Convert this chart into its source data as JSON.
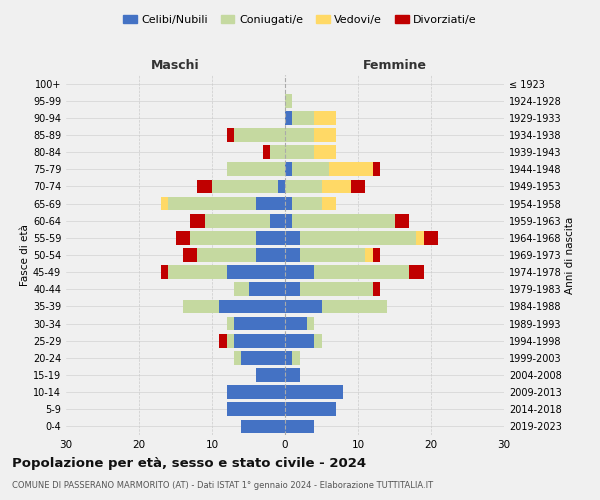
{
  "age_groups": [
    "0-4",
    "5-9",
    "10-14",
    "15-19",
    "20-24",
    "25-29",
    "30-34",
    "35-39",
    "40-44",
    "45-49",
    "50-54",
    "55-59",
    "60-64",
    "65-69",
    "70-74",
    "75-79",
    "80-84",
    "85-89",
    "90-94",
    "95-99",
    "100+"
  ],
  "birth_years": [
    "2019-2023",
    "2014-2018",
    "2009-2013",
    "2004-2008",
    "1999-2003",
    "1994-1998",
    "1989-1993",
    "1984-1988",
    "1979-1983",
    "1974-1978",
    "1969-1973",
    "1964-1968",
    "1959-1963",
    "1954-1958",
    "1949-1953",
    "1944-1948",
    "1939-1943",
    "1934-1938",
    "1929-1933",
    "1924-1928",
    "≤ 1923"
  ],
  "males": {
    "celibi": [
      6,
      8,
      8,
      4,
      6,
      7,
      7,
      9,
      5,
      8,
      4,
      4,
      2,
      4,
      1,
      0,
      0,
      0,
      0,
      0,
      0
    ],
    "coniugati": [
      0,
      0,
      0,
      0,
      1,
      1,
      1,
      5,
      2,
      8,
      8,
      9,
      9,
      12,
      9,
      8,
      2,
      7,
      0,
      0,
      0
    ],
    "vedovi": [
      0,
      0,
      0,
      0,
      0,
      0,
      0,
      0,
      0,
      0,
      0,
      0,
      0,
      1,
      0,
      0,
      0,
      0,
      0,
      0,
      0
    ],
    "divorziati": [
      0,
      0,
      0,
      0,
      0,
      1,
      0,
      0,
      0,
      1,
      2,
      2,
      2,
      0,
      2,
      0,
      1,
      1,
      0,
      0,
      0
    ]
  },
  "females": {
    "nubili": [
      4,
      7,
      8,
      2,
      1,
      4,
      3,
      5,
      2,
      4,
      2,
      2,
      1,
      1,
      0,
      1,
      0,
      0,
      1,
      0,
      0
    ],
    "coniugate": [
      0,
      0,
      0,
      0,
      1,
      1,
      1,
      9,
      10,
      13,
      9,
      16,
      14,
      4,
      5,
      5,
      4,
      4,
      3,
      1,
      0
    ],
    "vedove": [
      0,
      0,
      0,
      0,
      0,
      0,
      0,
      0,
      0,
      0,
      1,
      1,
      0,
      2,
      4,
      6,
      3,
      3,
      3,
      0,
      0
    ],
    "divorziate": [
      0,
      0,
      0,
      0,
      0,
      0,
      0,
      0,
      1,
      2,
      1,
      2,
      2,
      0,
      2,
      1,
      0,
      0,
      0,
      0,
      0
    ]
  },
  "colors": {
    "celibi": "#4472C4",
    "coniugati": "#C5D9A0",
    "vedovi": "#FFD966",
    "divorziati": "#C00000"
  },
  "xlim": 30,
  "title": "Popolazione per età, sesso e stato civile - 2024",
  "subtitle": "COMUNE DI PASSERANO MARMORITO (AT) - Dati ISTAT 1° gennaio 2024 - Elaborazione TUTTITALIA.IT",
  "ylabel_left": "Fasce di età",
  "ylabel_right": "Anni di nascita",
  "xlabel_left": "Maschi",
  "xlabel_right": "Femmine",
  "legend_labels": [
    "Celibi/Nubili",
    "Coniugati/e",
    "Vedovi/e",
    "Divorziati/e"
  ],
  "bg_color": "#f0f0f0"
}
